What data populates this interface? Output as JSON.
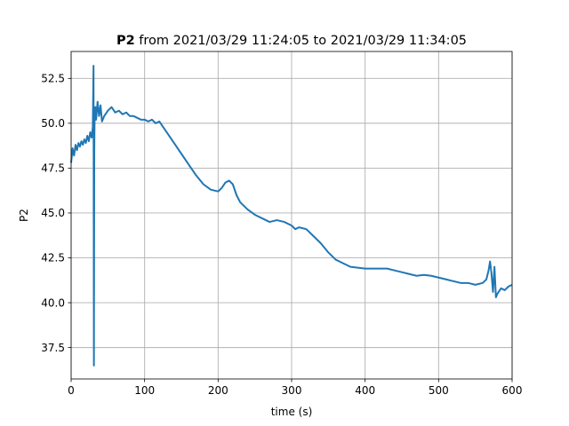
{
  "chart_data": {
    "type": "line",
    "title_bold": "P2",
    "title_rest": " from 2021/03/29 11:24:05 to 2021/03/29 11:34:05",
    "xlabel": "time (s)",
    "ylabel": "P2",
    "xlim": [
      0,
      600
    ],
    "ylim": [
      35.75,
      54.0
    ],
    "xticks": [
      0,
      100,
      200,
      300,
      400,
      500,
      600
    ],
    "yticks": [
      37.5,
      40.0,
      42.5,
      45.0,
      47.5,
      50.0,
      52.5
    ],
    "xtick_labels": [
      "0",
      "100",
      "200",
      "300",
      "400",
      "500",
      "600"
    ],
    "ytick_labels": [
      "37.5",
      "40.0",
      "42.5",
      "45.0",
      "47.5",
      "50.0",
      "52.5"
    ],
    "grid": true,
    "color": "#1f77b4",
    "series": [
      {
        "x": [
          0,
          2,
          4,
          6,
          8,
          10,
          12,
          14,
          16,
          18,
          20,
          22,
          24,
          26,
          28,
          29.5,
          30.5,
          31,
          31.5,
          32,
          33,
          34,
          36,
          38,
          40,
          42,
          45,
          50,
          55,
          60,
          65,
          70,
          75,
          80,
          85,
          90,
          95,
          100,
          105,
          110,
          115,
          120,
          125,
          130,
          140,
          150,
          160,
          170,
          180,
          190,
          200,
          205,
          210,
          215,
          220,
          225,
          230,
          240,
          250,
          260,
          270,
          280,
          290,
          300,
          305,
          310,
          320,
          330,
          340,
          350,
          360,
          370,
          380,
          390,
          400,
          410,
          420,
          430,
          440,
          450,
          460,
          470,
          480,
          490,
          500,
          510,
          520,
          530,
          540,
          550,
          560,
          565,
          568,
          570,
          572,
          574,
          576,
          578,
          580,
          585,
          590,
          595,
          600
        ],
        "y": [
          47.8,
          48.6,
          48.2,
          48.8,
          48.5,
          48.9,
          48.7,
          49.0,
          48.8,
          49.1,
          48.9,
          49.3,
          49.0,
          49.5,
          49.2,
          49.8,
          53.2,
          36.5,
          48.5,
          50.5,
          50.9,
          50.2,
          51.2,
          50.4,
          51.0,
          50.1,
          50.4,
          50.7,
          50.9,
          50.6,
          50.7,
          50.5,
          50.6,
          50.4,
          50.4,
          50.3,
          50.2,
          50.2,
          50.1,
          50.2,
          50.0,
          50.1,
          49.8,
          49.5,
          48.9,
          48.3,
          47.7,
          47.1,
          46.6,
          46.3,
          46.2,
          46.4,
          46.7,
          46.8,
          46.6,
          46.0,
          45.6,
          45.2,
          44.9,
          44.7,
          44.5,
          44.6,
          44.5,
          44.3,
          44.1,
          44.2,
          44.1,
          43.7,
          43.3,
          42.8,
          42.4,
          42.2,
          42.0,
          41.95,
          41.9,
          41.9,
          41.9,
          41.9,
          41.8,
          41.7,
          41.6,
          41.5,
          41.55,
          41.5,
          41.4,
          41.3,
          41.2,
          41.1,
          41.1,
          41.0,
          41.1,
          41.3,
          41.8,
          42.3,
          41.6,
          40.6,
          42.0,
          40.3,
          40.5,
          40.8,
          40.7,
          40.9,
          41.0
        ]
      }
    ]
  }
}
